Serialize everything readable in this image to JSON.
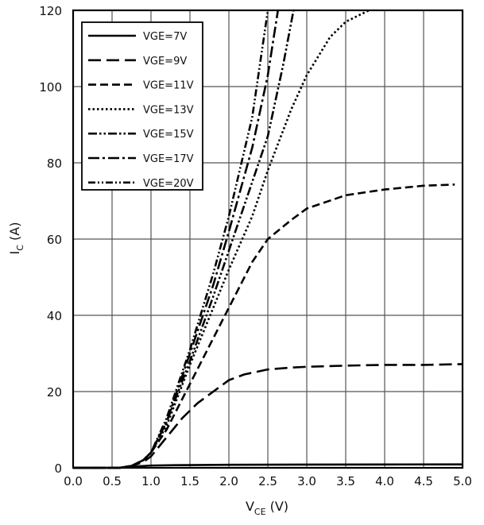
{
  "chart_data": {
    "type": "line",
    "title": "",
    "xlabel_main": "V",
    "xlabel_sub": "CE",
    "xlabel_unit": " (V)",
    "ylabel_main": "I",
    "ylabel_sub": "C",
    "ylabel_unit": " (A)",
    "xlim": [
      0,
      5
    ],
    "ylim": [
      0,
      120
    ],
    "xticks": [
      "0.0",
      "0.5",
      "1.0",
      "1.5",
      "2.0",
      "2.5",
      "3.0",
      "3.5",
      "4.0",
      "4.5",
      "5.0"
    ],
    "yticks": [
      "0",
      "20",
      "40",
      "60",
      "80",
      "100",
      "120"
    ],
    "grid": true,
    "legend_position": "top-left",
    "series": [
      {
        "name": "VGE=7V",
        "dash": "solid",
        "x": [
          0,
          0.5,
          0.7,
          0.85,
          1.0,
          1.3,
          2.0,
          3.0,
          4.0,
          5.0
        ],
        "y": [
          0,
          0,
          0.1,
          0.4,
          0.6,
          0.7,
          0.8,
          0.85,
          0.88,
          0.9
        ]
      },
      {
        "name": "VGE=9V",
        "dash": "long-dash",
        "x": [
          0,
          0.6,
          0.75,
          0.9,
          1.0,
          1.2,
          1.4,
          1.6,
          1.8,
          2.0,
          2.2,
          2.5,
          2.8,
          3.0,
          3.5,
          4.0,
          4.5,
          5.0
        ],
        "y": [
          0,
          0,
          0.5,
          1.5,
          3,
          8,
          13,
          17,
          20,
          23,
          24.5,
          25.8,
          26.3,
          26.5,
          26.8,
          27,
          27,
          27.2
        ]
      },
      {
        "name": "VGE=11V",
        "dash": "dash",
        "x": [
          0,
          0.6,
          0.75,
          0.9,
          1.0,
          1.2,
          1.5,
          1.8,
          2.0,
          2.3,
          2.5,
          2.8,
          3.0,
          3.5,
          4.0,
          4.5,
          4.9
        ],
        "y": [
          0,
          0,
          0.5,
          2,
          4,
          10,
          22,
          34,
          42,
          54,
          60,
          65,
          68,
          71.5,
          73,
          74,
          74.3
        ]
      },
      {
        "name": "VGE=13V",
        "dash": "dot",
        "x": [
          0,
          0.6,
          0.75,
          0.9,
          1.0,
          1.2,
          1.5,
          1.8,
          2.0,
          2.3,
          2.5,
          2.8,
          3.0,
          3.3,
          3.5,
          3.8
        ],
        "y": [
          0,
          0,
          0.5,
          2,
          4,
          11,
          27,
          42,
          52,
          66,
          78,
          94,
          103,
          113,
          117,
          120
        ]
      },
      {
        "name": "VGE=15V",
        "dash": "dash-dot-dot",
        "x": [
          0,
          0.6,
          0.75,
          0.9,
          1.0,
          1.2,
          1.5,
          1.8,
          2.0,
          2.3,
          2.5,
          2.7,
          2.83
        ],
        "y": [
          0,
          0,
          0.5,
          2,
          4,
          12,
          28,
          45,
          57,
          75,
          87,
          106,
          120
        ]
      },
      {
        "name": "VGE=17V",
        "dash": "dash-dot",
        "x": [
          0,
          0.6,
          0.75,
          0.9,
          1.0,
          1.2,
          1.5,
          1.8,
          2.0,
          2.3,
          2.5,
          2.63
        ],
        "y": [
          0,
          0,
          0.5,
          2,
          4,
          12,
          30,
          48,
          62,
          84,
          103,
          120
        ]
      },
      {
        "name": "VGE=20V",
        "dash": "dash-dot-dot-dot",
        "x": [
          0,
          0.6,
          0.75,
          0.9,
          1.0,
          1.2,
          1.5,
          1.8,
          2.0,
          2.3,
          2.5
        ],
        "y": [
          0,
          0,
          0.5,
          2,
          4,
          13,
          31,
          51,
          66,
          92,
          120
        ]
      }
    ]
  }
}
